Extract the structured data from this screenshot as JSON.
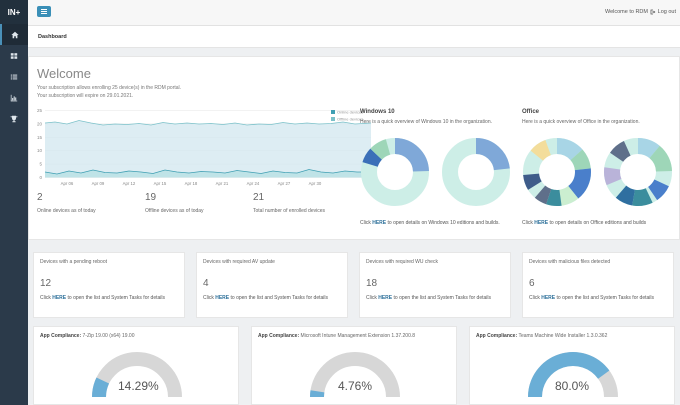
{
  "app": {
    "brand": "IN+"
  },
  "sidebar": {
    "items": [
      {
        "icon": "home-icon",
        "active": true
      },
      {
        "icon": "grid-icon"
      },
      {
        "icon": "list-icon"
      },
      {
        "icon": "bar-chart-icon"
      },
      {
        "icon": "trophy-icon"
      }
    ]
  },
  "topbar": {
    "welcome": "Welcome to RDM",
    "logout": "Log out"
  },
  "breadcrumb": "Dashboard",
  "welcome": {
    "title": "Welcome",
    "line1": "Your subscription allows enrolling 25 device(s) in the RDM portal.",
    "line2": "Your subscription will expire on 29.01.2021.",
    "chart": {
      "legend": [
        "Online devices",
        "Offline devices"
      ],
      "y_ticks": [
        "25",
        "20",
        "15",
        "10",
        "5",
        "0"
      ],
      "x_ticks": [
        "Apr 06",
        "Apr 09",
        "Apr 12",
        "Apr 15",
        "Apr 18",
        "Apr 21",
        "Apr 24",
        "Apr 27",
        "Apr 30"
      ]
    },
    "stats": [
      {
        "value": "2",
        "label": "Online devices as of today"
      },
      {
        "value": "19",
        "label": "Offline devices as of today"
      },
      {
        "value": "21",
        "label": "Total number of enrolled devices"
      }
    ]
  },
  "windows": {
    "title": "Windows 10",
    "subtitle": "Here is a quick overview of Windows 10 in the organization.",
    "link_prefix": "Click ",
    "link": "HERE",
    "link_suffix": " to open details on Windows 10 editions and builds."
  },
  "office": {
    "title": "Office",
    "subtitle": "Here is a quick overview of Office in the organization.",
    "link_prefix": "Click ",
    "link": "HERE",
    "link_suffix": " to open details on Office editions and builds"
  },
  "tiles": [
    {
      "title": "Devices with a pending reboot",
      "value": "12"
    },
    {
      "title": "Devices with required AV update",
      "value": "4"
    },
    {
      "title": "Devices with required WU check",
      "value": "18"
    },
    {
      "title": "Devices with malicious files detected",
      "value": "6"
    }
  ],
  "tile_link": {
    "prefix": "Click ",
    "link": "HERE",
    "suffix": " to open the list and System Tasks for details"
  },
  "compliance": [
    {
      "label": "App Compliance:",
      "app": "7-Zip 19.00 (x64) 19.00",
      "percent": "14.29%",
      "fraction": 0.1429
    },
    {
      "label": "App Compliance:",
      "app": "Microsoft Intune Management Extension 1.37.200.8",
      "percent": "4.76%",
      "fraction": 0.0476
    },
    {
      "label": "App Compliance:",
      "app": "Teams Machine Wide Installer 1.3.0.362",
      "percent": "80.0%",
      "fraction": 0.8
    }
  ],
  "colors": {
    "accent": "#3a8fb7",
    "sidebar": "#2b3a4a",
    "online": "#3f9fb3",
    "offline": "#7bc1c9",
    "gauge_track": "#d7d7d7",
    "gauge_fill": "#6aaed6"
  }
}
